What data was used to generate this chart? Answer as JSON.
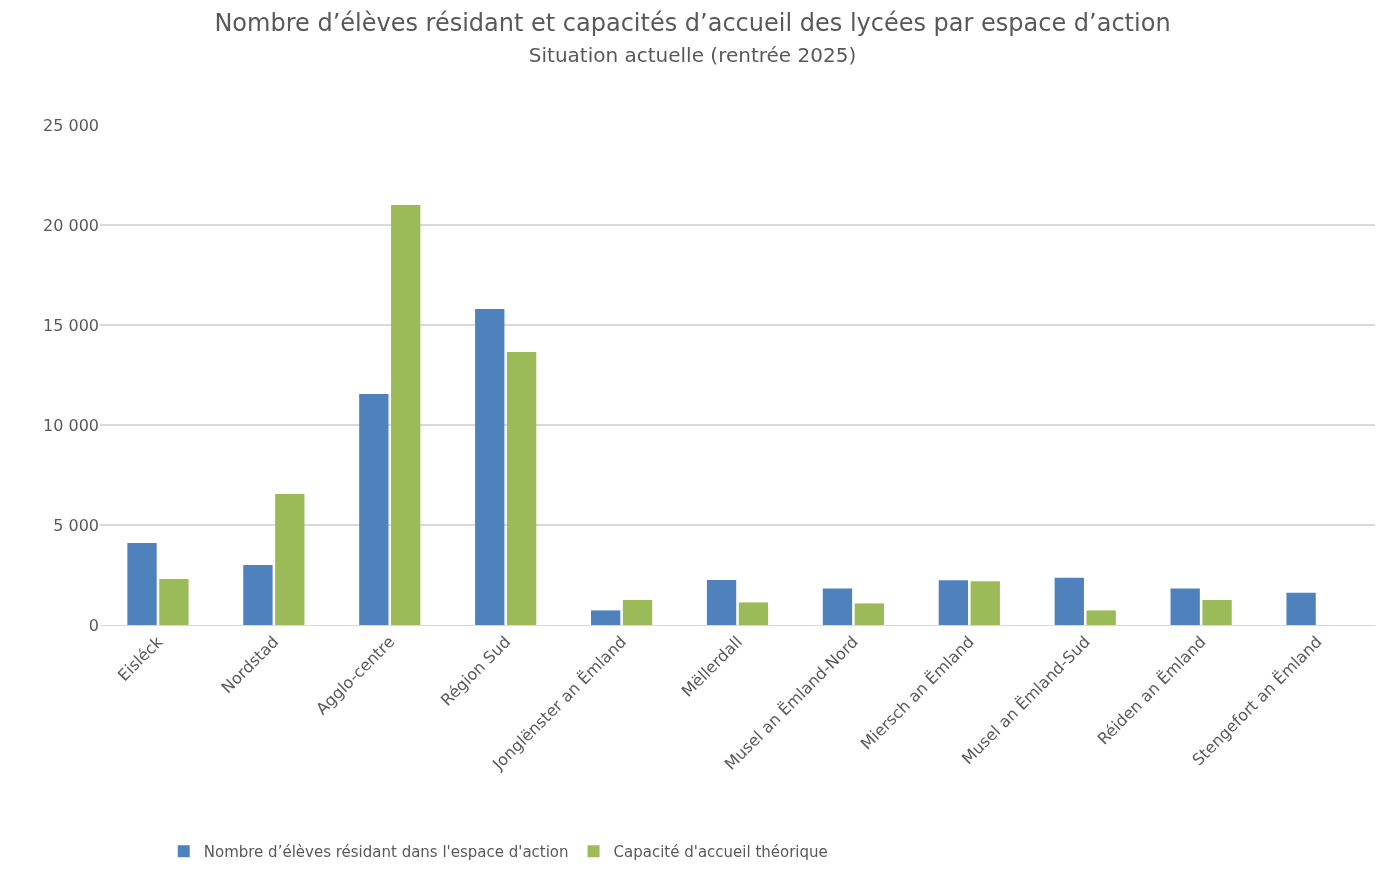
{
  "chart_data": {
    "type": "bar",
    "title": "Nombre d’élèves résidant et capacités d’accueil des lycées par espace d’action",
    "subtitle": "Situation actuelle (rentrée 2025)",
    "categories": [
      "Eisléck",
      "Nordstad",
      "Agglo-centre",
      "Région Sud",
      "Jonglënster an Ëmland",
      "Mëllerdall",
      "Musel an Ëmland-Nord",
      "Miersch an Ëmland",
      "Musel an Ëmland-Sud",
      "Réiden an Ëmland",
      "Stengefort an Ëmland"
    ],
    "series": [
      {
        "name": "Nombre d’élèves résidant dans l'espace d'action",
        "color": "#4f81bd",
        "values": [
          4100,
          3000,
          11550,
          15800,
          730,
          2250,
          1830,
          2240,
          2360,
          1830,
          1610
        ]
      },
      {
        "name": "Capacité d'accueil théorique",
        "color": "#9bbb59",
        "values": [
          2300,
          6550,
          21000,
          13650,
          1250,
          1130,
          1080,
          2190,
          730,
          1250,
          null
        ]
      }
    ],
    "ylim": [
      0,
      25000
    ],
    "yticks": [
      0,
      {
        "value": 5000,
        "label": "5 000"
      },
      {
        "value": 10000,
        "label": "10 000"
      },
      {
        "value": 15000,
        "label": "15 000"
      },
      {
        "value": 20000,
        "label": "20 000"
      },
      {
        "value": 25000,
        "label": "25 000"
      }
    ],
    "grid": "y",
    "legend": "bottom left"
  }
}
